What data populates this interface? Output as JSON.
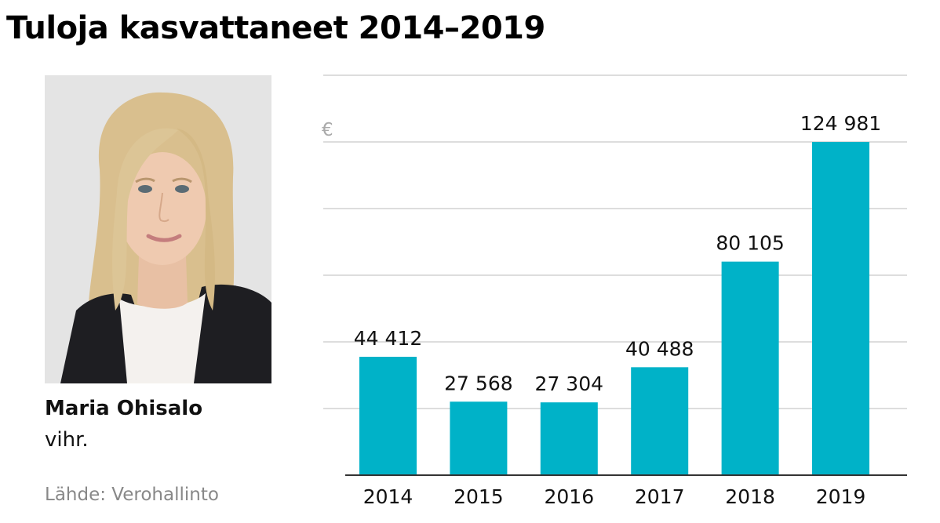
{
  "header": {
    "title": "Tuloja kasvattaneet 2014–2019"
  },
  "person": {
    "name": "Maria Ohisalo",
    "party": "vihr.",
    "photo_icon": "portrait-photo-icon"
  },
  "footer": {
    "source": "Lähde: Verohallinto"
  },
  "colors": {
    "bar": "#00b2c8",
    "grid": "#d2d2d2",
    "axis": "#333333"
  },
  "chart_data": {
    "type": "bar",
    "title": "Tuloja kasvattaneet 2014–2019",
    "unit": "€",
    "categories": [
      "2014",
      "2015",
      "2016",
      "2017",
      "2018",
      "2019"
    ],
    "values": [
      44412,
      27568,
      27304,
      40488,
      80105,
      124981
    ],
    "value_labels": [
      "44 412",
      "27 568",
      "27 304",
      "40 488",
      "80 105",
      "124 981"
    ],
    "ylim": [
      0,
      150000
    ],
    "grid": true,
    "legend": "none"
  }
}
